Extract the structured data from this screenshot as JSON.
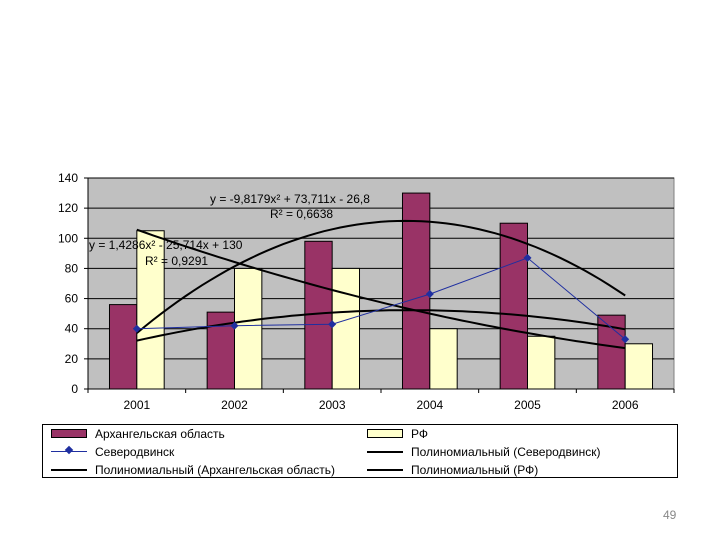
{
  "chart_data": {
    "type": "bar",
    "categories": [
      "2001",
      "2002",
      "2003",
      "2004",
      "2005",
      "2006"
    ],
    "ylim": [
      0,
      140
    ],
    "yticks": [
      0,
      20,
      40,
      60,
      80,
      100,
      120,
      140
    ],
    "series": [
      {
        "name": "Архангельская область",
        "kind": "bar",
        "color": "#993366",
        "values": [
          56,
          51,
          98,
          130,
          110,
          49
        ]
      },
      {
        "name": "РФ",
        "kind": "bar",
        "color": "#ffffcc",
        "values": [
          105,
          80,
          80,
          40,
          35,
          30
        ]
      },
      {
        "name": "Северодвинск",
        "kind": "line",
        "color": "#1f2fa0",
        "values": [
          40,
          42,
          43,
          63,
          87,
          33
        ]
      }
    ],
    "trendlines": [
      {
        "name": "Полиномиальный (Северодвинск)",
        "color": "#000000",
        "coef": [
          -2.6,
          19.7,
          15
        ]
      },
      {
        "name": "Полиномиальный (Архангельская область)",
        "color": "#000000",
        "coef": [
          -9.8179,
          73.711,
          -26.8
        ]
      },
      {
        "name": "Полиномиальный (РФ)",
        "color": "#000000",
        "coef": [
          1.4286,
          -25.714,
          130
        ]
      }
    ],
    "annotations": [
      {
        "id": "eq1",
        "equation": "y = -9,8179x² + 73,711x - 26,8",
        "r2": "R² = 0,6638"
      },
      {
        "id": "eq2",
        "equation": "y = 1,4286x² - 25,714x + 130",
        "r2": "R² = 0,9291"
      }
    ],
    "legend": {
      "position": "bottom",
      "items": [
        {
          "label": "Архангельская область",
          "type": "bar",
          "color": "#993366"
        },
        {
          "label": "РФ",
          "type": "bar",
          "color": "#ffffcc"
        },
        {
          "label": "Северодвинск",
          "type": "marker-line",
          "color": "#1f2fa0"
        },
        {
          "label": "Полиномиальный (Северодвинск)",
          "type": "line",
          "color": "#000000"
        },
        {
          "label": "Полиномиальный (Архангельская область)",
          "type": "line",
          "color": "#000000"
        },
        {
          "label": "Полиномиальный (РФ)",
          "type": "line",
          "color": "#000000"
        }
      ]
    },
    "plot_background": "#c0c0c0",
    "grid": true
  },
  "page": {
    "number": "49"
  }
}
